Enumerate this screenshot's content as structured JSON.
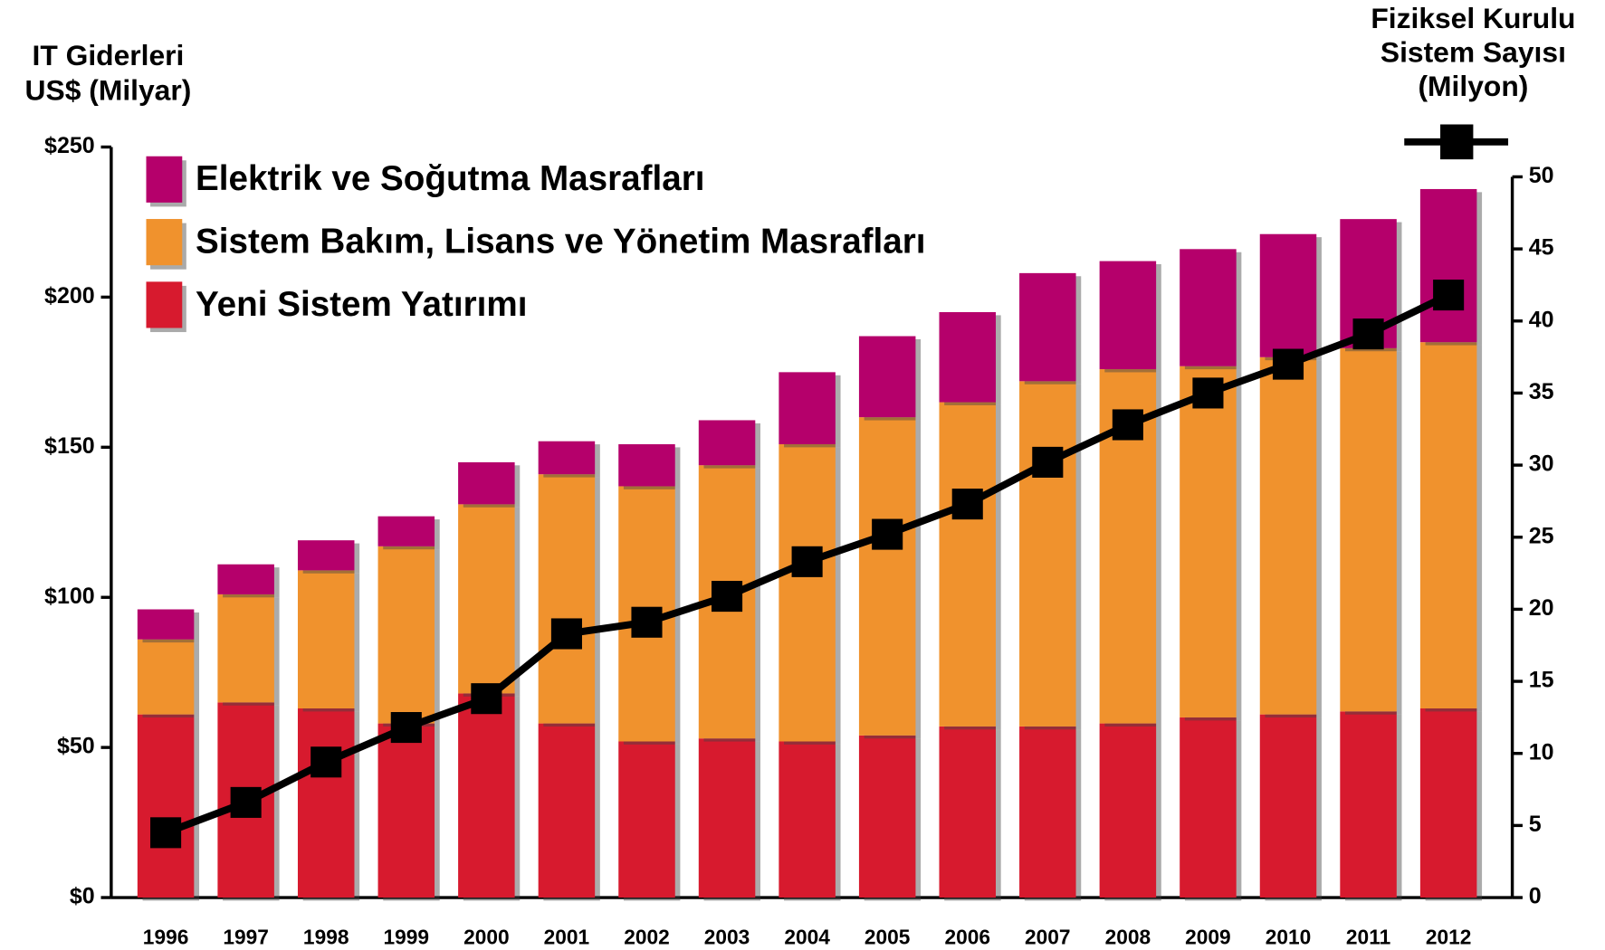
{
  "chart_data": {
    "type": "stacked_bar_line",
    "ylabel": [
      "IT Giderleri",
      "US$ (Milyar)"
    ],
    "y2label": [
      "Fiziksel Kurulu",
      "Sistem Sayısı",
      "(Milyon)"
    ],
    "categories": [
      "1996",
      "1997",
      "1998",
      "1999",
      "2000",
      "2001",
      "2002",
      "2003",
      "2004",
      "2005",
      "2006",
      "2007",
      "2008",
      "2009",
      "2010",
      "2011",
      "2012"
    ],
    "series": [
      {
        "name": "Yeni Sistem Yatırımı",
        "color": "#d71a2e",
        "values": [
          61,
          65,
          63,
          58,
          68,
          58,
          52,
          53,
          52,
          54,
          57,
          57,
          58,
          60,
          61,
          62,
          63
        ]
      },
      {
        "name": "Sistem Bakım, Lisans ve Yönetim Masrafları",
        "color": "#f0922d",
        "values": [
          25,
          36,
          46,
          59,
          63,
          83,
          85,
          91,
          99,
          106,
          108,
          115,
          118,
          117,
          119,
          121,
          122
        ]
      },
      {
        "name": "Elektrik ve Soğutma Masrafları",
        "color": "#b5006b",
        "values": [
          10,
          10,
          10,
          10,
          14,
          11,
          14,
          15,
          24,
          27,
          30,
          36,
          36,
          39,
          41,
          43,
          51
        ]
      },
      {
        "type": "line",
        "axis": "y2",
        "color": "#000000",
        "values": [
          4.5,
          6.6,
          9.4,
          11.8,
          13.8,
          18.3,
          19.1,
          20.9,
          23.3,
          25.2,
          27.3,
          30.2,
          32.8,
          35,
          37,
          39.1,
          41.8
        ]
      }
    ],
    "ylim": [
      0,
      250
    ],
    "yticks": [
      {
        "value": 0,
        "label": "$0"
      },
      {
        "value": 50,
        "label": "$50"
      },
      {
        "value": 100,
        "label": "$100"
      },
      {
        "value": 150,
        "label": "$150"
      },
      {
        "value": 200,
        "label": "$200"
      },
      {
        "value": 250,
        "label": "$250"
      }
    ],
    "y2lim": [
      0,
      50
    ],
    "y2ticks": [
      0,
      5,
      10,
      15,
      20,
      25,
      30,
      35,
      40,
      45,
      50
    ]
  }
}
